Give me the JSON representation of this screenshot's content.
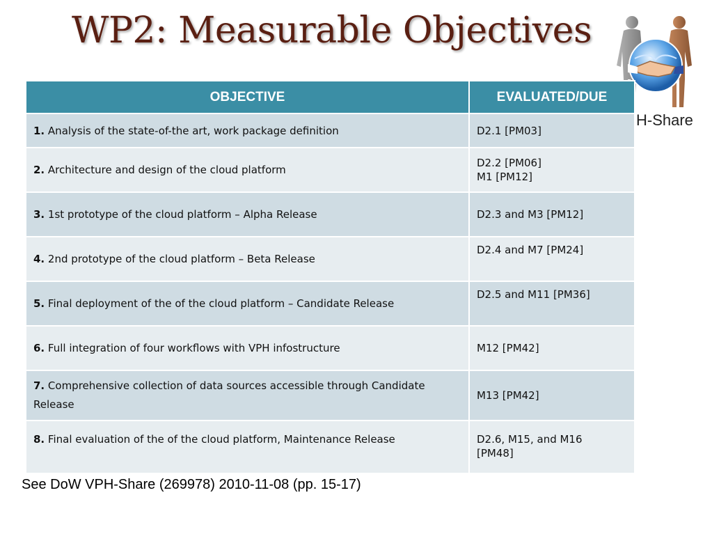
{
  "slide": {
    "title": "WP2: Measurable Objectives",
    "logo_text": "H-Share",
    "footnote": "See DoW VPH-Share (269978) 2010-11-08 (pp. 15-17)"
  },
  "table": {
    "headers": [
      "OBJECTIVE",
      "EVALUATED/DUE"
    ],
    "rows": [
      {
        "num": "1.",
        "text": "Analysis of the state-of-the art, work package definition",
        "due": [
          "D2.1 [PM03]"
        ]
      },
      {
        "num": "2.",
        "text": "Architecture and design of the cloud platform",
        "due": [
          "D2.2 [PM06]",
          "M1 [PM12]"
        ]
      },
      {
        "num": "3.",
        "text": "1st prototype of the cloud platform –  Alpha  Release",
        "due": [
          "D2.3 and M3 [PM12]"
        ]
      },
      {
        "num": "4.",
        "text": "2nd prototype of the cloud platform – Beta Release",
        "due": [
          "D2.4 and M7 [PM24]"
        ]
      },
      {
        "num": "5.",
        "text": "Final deployment of the of the cloud platform – Candidate Release",
        "due": [
          "D2.5 and M11 [PM36]"
        ]
      },
      {
        "num": "6.",
        "text": "Full integration of four workflows with VPH infostructure",
        "due": [
          "M12 [PM42]"
        ]
      },
      {
        "num": "7.",
        "text": "Comprehensive collection of data sources accessible through Candidate Release",
        "due": [
          "M13 [PM42]"
        ]
      },
      {
        "num": "8.",
        "text": "Final evaluation of the of the cloud platform, Maintenance Release",
        "due": [
          "D2.6, M15, and M16",
          "[PM48]"
        ]
      }
    ]
  },
  "colors": {
    "title": "#5a1f12",
    "header_bg": "#3b8ea5",
    "row_dark": "#cfdce3",
    "row_light": "#e7edf0"
  },
  "icons": [
    "vph-share-logo-icon",
    "handshake-globe-icon"
  ]
}
